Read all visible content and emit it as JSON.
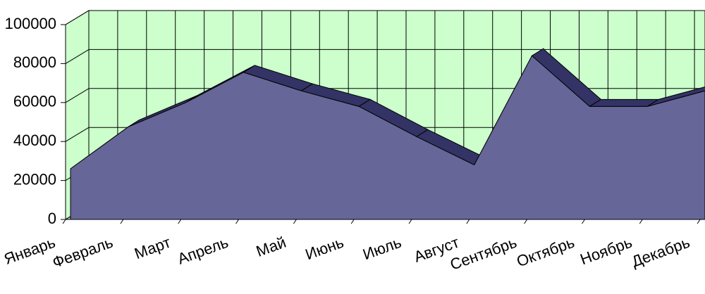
{
  "chart_data": {
    "type": "area",
    "categories": [
      "Январь",
      "Февраль",
      "Март",
      "Апрель",
      "Май",
      "Июнь",
      "Июль",
      "Август",
      "Сентябрь",
      "Октябрь",
      "Ноябрь",
      "Декабрь"
    ],
    "series": [
      {
        "color": "#666699",
        "values": [
          26000,
          47500,
          60000,
          75500,
          66000,
          58000,
          42500,
          28000,
          84000,
          58000,
          58000,
          66000
        ]
      }
    ],
    "ylim": [
      0,
      100000
    ],
    "yticks": [
      0,
      20000,
      40000,
      60000,
      80000,
      100000
    ],
    "grid": true
  }
}
